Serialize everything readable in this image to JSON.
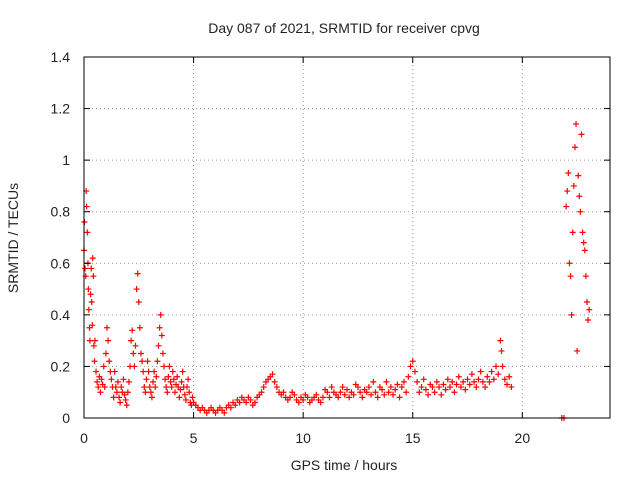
{
  "chart_data": {
    "type": "scatter",
    "title": "Day 087 of 2021, SRMTID for receiver cpvg",
    "xlabel": "GPS time / hours",
    "ylabel": "SRMTID / TECUs",
    "xlim": [
      0,
      24
    ],
    "ylim": [
      0,
      1.4
    ],
    "x_ticks": [
      0,
      5,
      10,
      15,
      20
    ],
    "y_ticks": [
      0,
      0.2,
      0.4,
      0.6,
      0.8,
      1,
      1.2,
      1.4
    ],
    "y_tick_labels": [
      "0",
      "0.2",
      "0.4",
      "0.6",
      "0.8",
      "1",
      "1.2",
      "1.4"
    ],
    "grid": true,
    "marker": "+",
    "series": [
      {
        "name": "SRMTID",
        "color": "#ff0000",
        "points": [
          [
            0.0,
            0.65
          ],
          [
            0.02,
            0.76
          ],
          [
            0.05,
            0.58
          ],
          [
            0.08,
            0.55
          ],
          [
            0.1,
            0.88
          ],
          [
            0.12,
            0.82
          ],
          [
            0.15,
            0.72
          ],
          [
            0.18,
            0.6
          ],
          [
            0.2,
            0.5
          ],
          [
            0.22,
            0.42
          ],
          [
            0.25,
            0.35
          ],
          [
            0.27,
            0.3
          ],
          [
            0.3,
            0.48
          ],
          [
            0.33,
            0.58
          ],
          [
            0.35,
            0.45
          ],
          [
            0.38,
            0.36
          ],
          [
            0.4,
            0.62
          ],
          [
            0.43,
            0.55
          ],
          [
            0.45,
            0.28
          ],
          [
            0.48,
            0.22
          ],
          [
            0.5,
            0.3
          ],
          [
            0.55,
            0.18
          ],
          [
            0.6,
            0.14
          ],
          [
            0.65,
            0.12
          ],
          [
            0.7,
            0.16
          ],
          [
            0.75,
            0.1
          ],
          [
            0.8,
            0.15
          ],
          [
            0.85,
            0.13
          ],
          [
            0.9,
            0.2
          ],
          [
            0.95,
            0.12
          ],
          [
            1.0,
            0.25
          ],
          [
            1.05,
            0.35
          ],
          [
            1.1,
            0.3
          ],
          [
            1.15,
            0.22
          ],
          [
            1.2,
            0.18
          ],
          [
            1.25,
            0.15
          ],
          [
            1.3,
            0.12
          ],
          [
            1.35,
            0.08
          ],
          [
            1.4,
            0.18
          ],
          [
            1.45,
            0.12
          ],
          [
            1.5,
            0.1
          ],
          [
            1.55,
            0.14
          ],
          [
            1.6,
            0.08
          ],
          [
            1.65,
            0.06
          ],
          [
            1.7,
            0.12
          ],
          [
            1.75,
            0.1
          ],
          [
            1.8,
            0.15
          ],
          [
            1.85,
            0.09
          ],
          [
            1.9,
            0.07
          ],
          [
            1.95,
            0.05
          ],
          [
            2.0,
            0.1
          ],
          [
            2.05,
            0.14
          ],
          [
            2.1,
            0.2
          ],
          [
            2.15,
            0.3
          ],
          [
            2.2,
            0.34
          ],
          [
            2.25,
            0.25
          ],
          [
            2.3,
            0.2
          ],
          [
            2.35,
            0.28
          ],
          [
            2.4,
            0.5
          ],
          [
            2.45,
            0.56
          ],
          [
            2.5,
            0.45
          ],
          [
            2.55,
            0.35
          ],
          [
            2.6,
            0.25
          ],
          [
            2.65,
            0.22
          ],
          [
            2.7,
            0.18
          ],
          [
            2.75,
            0.12
          ],
          [
            2.8,
            0.1
          ],
          [
            2.85,
            0.15
          ],
          [
            2.9,
            0.22
          ],
          [
            2.95,
            0.18
          ],
          [
            3.0,
            0.12
          ],
          [
            3.05,
            0.1
          ],
          [
            3.1,
            0.08
          ],
          [
            3.15,
            0.14
          ],
          [
            3.2,
            0.18
          ],
          [
            3.25,
            0.12
          ],
          [
            3.3,
            0.16
          ],
          [
            3.35,
            0.22
          ],
          [
            3.4,
            0.28
          ],
          [
            3.45,
            0.35
          ],
          [
            3.5,
            0.4
          ],
          [
            3.55,
            0.32
          ],
          [
            3.6,
            0.25
          ],
          [
            3.65,
            0.2
          ],
          [
            3.7,
            0.15
          ],
          [
            3.75,
            0.12
          ],
          [
            3.8,
            0.1
          ],
          [
            3.85,
            0.16
          ],
          [
            3.9,
            0.2
          ],
          [
            3.95,
            0.14
          ],
          [
            4.0,
            0.12
          ],
          [
            4.05,
            0.18
          ],
          [
            4.1,
            0.15
          ],
          [
            4.15,
            0.1
          ],
          [
            4.2,
            0.13
          ],
          [
            4.25,
            0.16
          ],
          [
            4.3,
            0.12
          ],
          [
            4.35,
            0.08
          ],
          [
            4.4,
            0.11
          ],
          [
            4.45,
            0.14
          ],
          [
            4.5,
            0.18
          ],
          [
            4.55,
            0.12
          ],
          [
            4.6,
            0.09
          ],
          [
            4.65,
            0.07
          ],
          [
            4.7,
            0.12
          ],
          [
            4.75,
            0.15
          ],
          [
            4.8,
            0.1
          ],
          [
            4.85,
            0.06
          ],
          [
            4.9,
            0.05
          ],
          [
            4.95,
            0.08
          ],
          [
            5.0,
            0.06
          ],
          [
            5.1,
            0.05
          ],
          [
            5.2,
            0.04
          ],
          [
            5.3,
            0.03
          ],
          [
            5.4,
            0.04
          ],
          [
            5.5,
            0.03
          ],
          [
            5.6,
            0.02
          ],
          [
            5.7,
            0.03
          ],
          [
            5.8,
            0.04
          ],
          [
            5.9,
            0.03
          ],
          [
            6.0,
            0.02
          ],
          [
            6.1,
            0.03
          ],
          [
            6.2,
            0.04
          ],
          [
            6.3,
            0.03
          ],
          [
            6.4,
            0.02
          ],
          [
            6.5,
            0.04
          ],
          [
            6.6,
            0.05
          ],
          [
            6.7,
            0.04
          ],
          [
            6.8,
            0.06
          ],
          [
            6.9,
            0.05
          ],
          [
            7.0,
            0.07
          ],
          [
            7.1,
            0.06
          ],
          [
            7.2,
            0.08
          ],
          [
            7.3,
            0.07
          ],
          [
            7.4,
            0.06
          ],
          [
            7.5,
            0.08
          ],
          [
            7.6,
            0.07
          ],
          [
            7.7,
            0.05
          ],
          [
            7.8,
            0.06
          ],
          [
            7.9,
            0.08
          ],
          [
            8.0,
            0.09
          ],
          [
            8.1,
            0.1
          ],
          [
            8.2,
            0.12
          ],
          [
            8.3,
            0.14
          ],
          [
            8.4,
            0.15
          ],
          [
            8.5,
            0.16
          ],
          [
            8.6,
            0.17
          ],
          [
            8.7,
            0.14
          ],
          [
            8.8,
            0.12
          ],
          [
            8.9,
            0.1
          ],
          [
            9.0,
            0.09
          ],
          [
            9.1,
            0.1
          ],
          [
            9.2,
            0.08
          ],
          [
            9.3,
            0.07
          ],
          [
            9.4,
            0.08
          ],
          [
            9.5,
            0.1
          ],
          [
            9.6,
            0.09
          ],
          [
            9.7,
            0.07
          ],
          [
            9.8,
            0.06
          ],
          [
            9.9,
            0.08
          ],
          [
            10.0,
            0.07
          ],
          [
            10.1,
            0.09
          ],
          [
            10.2,
            0.08
          ],
          [
            10.3,
            0.06
          ],
          [
            10.4,
            0.07
          ],
          [
            10.5,
            0.08
          ],
          [
            10.6,
            0.09
          ],
          [
            10.7,
            0.07
          ],
          [
            10.8,
            0.06
          ],
          [
            10.9,
            0.08
          ],
          [
            11.0,
            0.11
          ],
          [
            11.1,
            0.1
          ],
          [
            11.2,
            0.08
          ],
          [
            11.3,
            0.12
          ],
          [
            11.4,
            0.1
          ],
          [
            11.5,
            0.09
          ],
          [
            11.6,
            0.08
          ],
          [
            11.7,
            0.1
          ],
          [
            11.8,
            0.12
          ],
          [
            11.9,
            0.09
          ],
          [
            12.0,
            0.11
          ],
          [
            12.1,
            0.08
          ],
          [
            12.2,
            0.1
          ],
          [
            12.3,
            0.09
          ],
          [
            12.4,
            0.13
          ],
          [
            12.5,
            0.12
          ],
          [
            12.6,
            0.1
          ],
          [
            12.7,
            0.08
          ],
          [
            12.8,
            0.11
          ],
          [
            12.9,
            0.1
          ],
          [
            13.0,
            0.12
          ],
          [
            13.1,
            0.09
          ],
          [
            13.2,
            0.14
          ],
          [
            13.3,
            0.1
          ],
          [
            13.4,
            0.08
          ],
          [
            13.5,
            0.12
          ],
          [
            13.6,
            0.11
          ],
          [
            13.7,
            0.09
          ],
          [
            13.8,
            0.14
          ],
          [
            13.9,
            0.1
          ],
          [
            14.0,
            0.12
          ],
          [
            14.1,
            0.09
          ],
          [
            14.2,
            0.11
          ],
          [
            14.3,
            0.13
          ],
          [
            14.4,
            0.08
          ],
          [
            14.5,
            0.12
          ],
          [
            14.6,
            0.14
          ],
          [
            14.7,
            0.1
          ],
          [
            14.8,
            0.16
          ],
          [
            14.9,
            0.2
          ],
          [
            15.0,
            0.22
          ],
          [
            15.1,
            0.18
          ],
          [
            15.2,
            0.14
          ],
          [
            15.3,
            0.1
          ],
          [
            15.4,
            0.12
          ],
          [
            15.5,
            0.15
          ],
          [
            15.6,
            0.11
          ],
          [
            15.7,
            0.09
          ],
          [
            15.8,
            0.13
          ],
          [
            15.9,
            0.12
          ],
          [
            16.0,
            0.1
          ],
          [
            16.1,
            0.14
          ],
          [
            16.2,
            0.12
          ],
          [
            16.3,
            0.09
          ],
          [
            16.4,
            0.13
          ],
          [
            16.5,
            0.11
          ],
          [
            16.6,
            0.15
          ],
          [
            16.7,
            0.12
          ],
          [
            16.8,
            0.14
          ],
          [
            16.9,
            0.1
          ],
          [
            17.0,
            0.13
          ],
          [
            17.1,
            0.16
          ],
          [
            17.2,
            0.12
          ],
          [
            17.3,
            0.14
          ],
          [
            17.4,
            0.11
          ],
          [
            17.5,
            0.15
          ],
          [
            17.6,
            0.13
          ],
          [
            17.7,
            0.17
          ],
          [
            17.8,
            0.14
          ],
          [
            17.9,
            0.12
          ],
          [
            18.0,
            0.15
          ],
          [
            18.1,
            0.18
          ],
          [
            18.2,
            0.14
          ],
          [
            18.3,
            0.12
          ],
          [
            18.4,
            0.16
          ],
          [
            18.5,
            0.14
          ],
          [
            18.6,
            0.18
          ],
          [
            18.7,
            0.15
          ],
          [
            18.8,
            0.2
          ],
          [
            18.9,
            0.17
          ],
          [
            19.0,
            0.3
          ],
          [
            19.05,
            0.26
          ],
          [
            19.1,
            0.2
          ],
          [
            19.2,
            0.15
          ],
          [
            19.3,
            0.13
          ],
          [
            19.4,
            0.16
          ],
          [
            19.5,
            0.12
          ],
          [
            21.8,
            0.0
          ],
          [
            21.9,
            0.0
          ],
          [
            22.0,
            0.82
          ],
          [
            22.05,
            0.88
          ],
          [
            22.1,
            0.95
          ],
          [
            22.15,
            0.6
          ],
          [
            22.2,
            0.55
          ],
          [
            22.25,
            0.4
          ],
          [
            22.3,
            0.72
          ],
          [
            22.35,
            0.9
          ],
          [
            22.4,
            1.05
          ],
          [
            22.45,
            1.14
          ],
          [
            22.5,
            0.26
          ],
          [
            22.55,
            0.94
          ],
          [
            22.6,
            0.86
          ],
          [
            22.65,
            0.8
          ],
          [
            22.7,
            1.1
          ],
          [
            22.75,
            0.72
          ],
          [
            22.8,
            0.68
          ],
          [
            22.85,
            0.65
          ],
          [
            22.9,
            0.55
          ],
          [
            22.95,
            0.45
          ],
          [
            23.0,
            0.38
          ],
          [
            23.05,
            0.42
          ]
        ]
      }
    ]
  }
}
